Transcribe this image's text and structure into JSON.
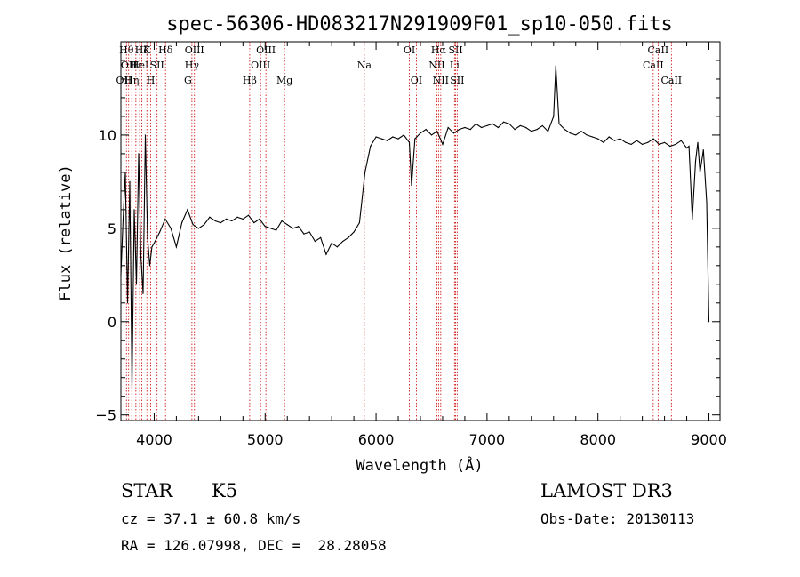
{
  "chart_data": {
    "type": "line",
    "title": "spec-56306-HD083217N291909F01_sp10-050.fits",
    "xlabel": "Wavelength (Å)",
    "ylabel": "Flux (relative)",
    "xlim": [
      3700,
      9100
    ],
    "ylim": [
      -5.3,
      15.0
    ],
    "x_ticks": [
      4000,
      5000,
      6000,
      7000,
      8000,
      9000
    ],
    "y_ticks": [
      -5,
      0,
      5,
      10
    ],
    "x_tick_labels": [
      "4000",
      "5000",
      "6000",
      "7000",
      "8000",
      "9000"
    ],
    "y_tick_labels": [
      "−5",
      "0",
      "5",
      "10"
    ],
    "grid": false,
    "line_color": "#000000",
    "marker_color": "#cc0000",
    "series": [
      {
        "x": [
          3700,
          3720,
          3740,
          3760,
          3780,
          3800,
          3820,
          3840,
          3860,
          3880,
          3900,
          3920,
          3940,
          3960,
          3980,
          4000,
          4050,
          4100,
          4150,
          4200,
          4250,
          4300,
          4350,
          4400,
          4450,
          4500,
          4550,
          4600,
          4650,
          4700,
          4750,
          4800,
          4850,
          4900,
          4950,
          5000,
          5050,
          5100,
          5150,
          5200,
          5250,
          5300,
          5350,
          5400,
          5450,
          5500,
          5550,
          5600,
          5650,
          5700,
          5750,
          5800,
          5850,
          5900,
          5950,
          6000,
          6050,
          6100,
          6150,
          6200,
          6250,
          6300,
          6320,
          6350,
          6400,
          6450,
          6500,
          6550,
          6600,
          6650,
          6700,
          6750,
          6800,
          6850,
          6900,
          6950,
          7000,
          7050,
          7100,
          7150,
          7200,
          7250,
          7300,
          7350,
          7400,
          7450,
          7500,
          7550,
          7600,
          7620,
          7650,
          7700,
          7750,
          7800,
          7850,
          7900,
          7950,
          8000,
          8050,
          8100,
          8150,
          8200,
          8250,
          8300,
          8350,
          8400,
          8450,
          8500,
          8550,
          8600,
          8650,
          8700,
          8750,
          8800,
          8820,
          8850,
          8880,
          8900,
          8920,
          8950,
          8980,
          9000
        ],
        "y": [
          2.5,
          5.5,
          8.0,
          1.0,
          7.5,
          -3.5,
          6.0,
          2.0,
          9.0,
          3.5,
          1.5,
          10.0,
          4.5,
          3.0,
          4.0,
          4.2,
          4.8,
          5.5,
          5.0,
          4.0,
          5.3,
          6.0,
          5.2,
          5.0,
          5.2,
          5.6,
          5.4,
          5.3,
          5.5,
          5.4,
          5.6,
          5.5,
          5.7,
          5.3,
          5.5,
          5.1,
          5.0,
          4.9,
          5.4,
          5.2,
          5.0,
          5.1,
          4.7,
          4.8,
          4.3,
          4.5,
          3.6,
          4.2,
          4.0,
          4.3,
          4.5,
          4.8,
          5.3,
          8.0,
          9.4,
          9.9,
          9.8,
          9.7,
          9.9,
          9.8,
          10.0,
          9.6,
          7.3,
          9.8,
          10.1,
          10.3,
          10.0,
          10.2,
          9.5,
          10.4,
          10.1,
          10.3,
          10.4,
          10.3,
          10.6,
          10.4,
          10.5,
          10.6,
          10.4,
          10.7,
          10.6,
          10.3,
          10.5,
          10.4,
          10.2,
          10.3,
          10.5,
          10.2,
          11.0,
          13.7,
          10.6,
          10.3,
          10.1,
          10.0,
          10.2,
          10.0,
          9.9,
          9.8,
          9.6,
          9.9,
          9.7,
          9.8,
          9.6,
          9.5,
          9.7,
          9.5,
          9.6,
          9.8,
          9.5,
          9.6,
          9.4,
          9.5,
          9.7,
          9.3,
          9.4,
          5.5,
          8.6,
          9.6,
          8.0,
          9.2,
          6.4,
          0.0
        ]
      }
    ],
    "line_markers": [
      {
        "wavelength": 3727,
        "label": "OII",
        "row": 2
      },
      {
        "wavelength": 3750,
        "label": "Hθ",
        "row": 0
      },
      {
        "wavelength": 3770,
        "label": "OII",
        "row": 1
      },
      {
        "wavelength": 3798,
        "label": "Hη",
        "row": 2
      },
      {
        "wavelength": 3835,
        "label": "Hε",
        "row": 1
      },
      {
        "wavelength": 3869,
        "label": "HeI",
        "row": 1
      },
      {
        "wavelength": 3889,
        "label": "Hζ",
        "row": 0
      },
      {
        "wavelength": 3934,
        "label": "K",
        "row": 0
      },
      {
        "wavelength": 3969,
        "label": "H",
        "row": 2
      },
      {
        "wavelength": 4026,
        "label": "SII",
        "row": 1
      },
      {
        "wavelength": 4102,
        "label": "Hδ",
        "row": 0
      },
      {
        "wavelength": 4304,
        "label": "G",
        "row": 2
      },
      {
        "wavelength": 4340,
        "label": "Hγ",
        "row": 1
      },
      {
        "wavelength": 4363,
        "label": "OIII",
        "row": 0
      },
      {
        "wavelength": 4861,
        "label": "Hβ",
        "row": 2
      },
      {
        "wavelength": 4959,
        "label": "OIII",
        "row": 1
      },
      {
        "wavelength": 5007,
        "label": "OIII",
        "row": 0
      },
      {
        "wavelength": 5175,
        "label": "Mg",
        "row": 2
      },
      {
        "wavelength": 5894,
        "label": "Na",
        "row": 1
      },
      {
        "wavelength": 6300,
        "label": "OI",
        "row": 0
      },
      {
        "wavelength": 6363,
        "label": "OI",
        "row": 2
      },
      {
        "wavelength": 6548,
        "label": "NII",
        "row": 1
      },
      {
        "wavelength": 6563,
        "label": "Hα",
        "row": 0
      },
      {
        "wavelength": 6583,
        "label": "NII",
        "row": 2
      },
      {
        "wavelength": 6707,
        "label": "Li",
        "row": 1
      },
      {
        "wavelength": 6717,
        "label": "SII",
        "row": 0
      },
      {
        "wavelength": 6731,
        "label": "SII",
        "row": 2
      },
      {
        "wavelength": 8498,
        "label": "CaII",
        "row": 1
      },
      {
        "wavelength": 8542,
        "label": "CaII",
        "row": 0
      },
      {
        "wavelength": 8662,
        "label": "CaII",
        "row": 2
      }
    ]
  },
  "info": {
    "class": "STAR",
    "subclass": "K5",
    "survey": "LAMOST DR3",
    "redshift": "cz = 37.1 ± 60.8 km/s",
    "obs_date": "Obs-Date: 20130113",
    "coords": "RA = 126.07998, DEC =  28.28058"
  }
}
